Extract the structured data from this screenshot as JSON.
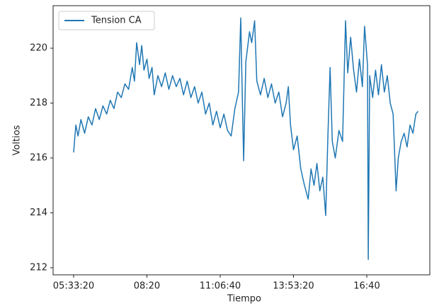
{
  "chart_data": {
    "type": "line",
    "xlabel": "Tiempo",
    "ylabel": "Voltios",
    "legend": "upper left",
    "x": [
      20000,
      20300,
      20600,
      21000,
      21500,
      22000,
      22500,
      23000,
      23500,
      24000,
      24500,
      25000,
      25500,
      26000,
      26500,
      27000,
      27500,
      28000,
      28300,
      28600,
      29000,
      29300,
      29600,
      30000,
      30300,
      30700,
      31000,
      31500,
      32000,
      32500,
      33000,
      33500,
      34000,
      34500,
      35000,
      35500,
      36000,
      36500,
      37000,
      37500,
      38000,
      38500,
      39000,
      39500,
      40000,
      40500,
      41000,
      41500,
      42000,
      42500,
      42800,
      43000,
      43200,
      43500,
      44000,
      44300,
      44700,
      45000,
      45500,
      46000,
      46500,
      47000,
      47500,
      48000,
      48500,
      49000,
      49300,
      49600,
      50000,
      50500,
      51000,
      51500,
      52000,
      52400,
      52800,
      53200,
      53600,
      54000,
      54400,
      54700,
      55000,
      55300,
      55700,
      56200,
      56700,
      57100,
      57400,
      57800,
      58200,
      58600,
      59000,
      59400,
      59700,
      60100,
      60200,
      60400,
      60800,
      61200,
      61600,
      62000,
      62400,
      62800,
      63200,
      63600,
      64000,
      64300,
      64700,
      65100,
      65500,
      65900,
      66300,
      66700,
      67000
    ],
    "series": [
      {
        "name": "Tension CA",
        "color": "#1f77b4",
        "values": [
          216.2,
          217.2,
          216.8,
          217.4,
          216.9,
          217.5,
          217.2,
          217.8,
          217.4,
          217.9,
          217.6,
          218.1,
          217.8,
          218.4,
          218.2,
          218.7,
          218.5,
          219.3,
          218.8,
          220.2,
          219.4,
          220.1,
          219.2,
          219.6,
          218.9,
          219.3,
          218.3,
          219.0,
          218.6,
          219.1,
          218.5,
          219.0,
          218.6,
          218.9,
          218.3,
          218.8,
          218.2,
          218.6,
          218.0,
          218.4,
          217.6,
          218.0,
          217.2,
          217.7,
          217.1,
          217.6,
          217.0,
          216.8,
          217.8,
          218.4,
          221.1,
          218.5,
          215.9,
          219.5,
          220.6,
          220.2,
          221.0,
          218.8,
          218.3,
          218.9,
          218.2,
          218.7,
          218.0,
          218.4,
          217.5,
          218.0,
          218.6,
          217.2,
          216.3,
          216.8,
          215.6,
          215.0,
          214.5,
          215.6,
          215.0,
          215.8,
          214.8,
          215.3,
          213.9,
          216.8,
          219.3,
          216.6,
          216.0,
          217.0,
          216.6,
          221.0,
          219.1,
          220.4,
          219.2,
          218.4,
          219.6,
          218.6,
          220.8,
          219.4,
          212.3,
          219.0,
          218.2,
          219.2,
          218.3,
          219.4,
          218.4,
          219.0,
          218.0,
          217.6,
          214.8,
          216.0,
          216.6,
          216.9,
          216.4,
          217.2,
          216.9,
          217.6,
          217.7
        ]
      }
    ],
    "xlim": [
      17200,
      68600
    ],
    "xticks": [
      {
        "value": 20000,
        "label": "05:33:20"
      },
      {
        "value": 30000,
        "label": "08:20"
      },
      {
        "value": 40000,
        "label": "11:06:40"
      },
      {
        "value": 50000,
        "label": "13:53:20"
      },
      {
        "value": 60000,
        "label": "16:40"
      }
    ],
    "ylim": [
      211.74,
      221.55
    ],
    "yticks": [
      212,
      214,
      216,
      218,
      220
    ]
  }
}
